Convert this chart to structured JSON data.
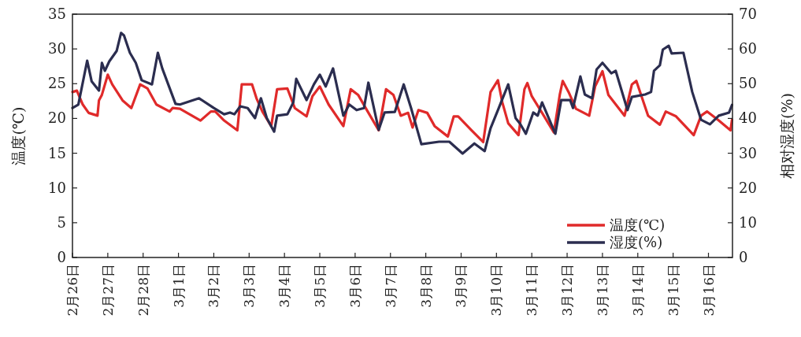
{
  "chart_data": {
    "type": "line",
    "ylabel": "温度(℃)",
    "y2label": "相对湿度(%)",
    "xlim": [
      "--02-26",
      "--03-16T16:19"
    ],
    "ylim": [
      0,
      35
    ],
    "y2lim": [
      0,
      70
    ],
    "xticks": [
      {
        "value": "--02-26",
        "label": "2月26日"
      },
      {
        "value": "--02-27",
        "label": "2月27日"
      },
      {
        "value": "--02-28",
        "label": "2月28日"
      },
      {
        "value": "--03-01",
        "label": "3月1日"
      },
      {
        "value": "--03-02",
        "label": "3月2日"
      },
      {
        "value": "--03-03",
        "label": "3月3日"
      },
      {
        "value": "--03-04",
        "label": "3月4日"
      },
      {
        "value": "--03-05",
        "label": "3月5日"
      },
      {
        "value": "--03-06",
        "label": "3月6日"
      },
      {
        "value": "--03-07",
        "label": "3月7日"
      },
      {
        "value": "--03-08",
        "label": "3月8日"
      },
      {
        "value": "--03-09",
        "label": "3月9日"
      },
      {
        "value": "--03-10",
        "label": "3月10日"
      },
      {
        "value": "--03-11",
        "label": "3月11日"
      },
      {
        "value": "--03-12",
        "label": "3月12日"
      },
      {
        "value": "--03-13",
        "label": "3月13日"
      },
      {
        "value": "--03-14",
        "label": "3月14日"
      },
      {
        "value": "--03-15",
        "label": "3月15日"
      },
      {
        "value": "--03-16",
        "label": "3月16日"
      }
    ],
    "yticks": [
      0,
      5,
      10,
      15,
      20,
      25,
      30,
      35
    ],
    "y2ticks": [
      0,
      10,
      20,
      30,
      40,
      50,
      60,
      70
    ],
    "grid": false,
    "legend": "bottom right",
    "line_style": "solid",
    "series": [
      {
        "name": "温度(℃)",
        "color": "#e02a2a",
        "x": [
          "--02-26T00:00",
          "--02-26T03:00",
          "--02-26T07:00",
          "--02-26T11:00",
          "--02-26T17:00",
          "--02-26T18:00",
          "--02-26T20:00",
          "--02-27T00:00",
          "--02-27T03:00",
          "--02-27T10:00",
          "--02-27T16:00",
          "--02-27T22:00",
          "--02-28T03:00",
          "--02-28T09:00",
          "--02-28T18:00",
          "--02-28T20:00",
          "--03-01T01:00",
          "--03-01T15:00",
          "--03-01T22:00",
          "--03-02T01:00",
          "--03-02T07:00",
          "--03-02T16:00",
          "--03-02T19:00",
          "--03-03T02:00",
          "--03-03T05:00",
          "--03-03T09:00",
          "--03-03T15:00",
          "--03-03T19:00",
          "--03-04T02:00",
          "--03-04T07:00",
          "--03-04T15:00",
          "--03-04T19:00",
          "--03-05T00:00",
          "--03-05T06:00",
          "--03-05T16:00",
          "--03-05T21:00",
          "--03-06T02:00",
          "--03-06T08:00",
          "--03-06T16:00",
          "--03-06T21:00",
          "--03-07T02:00",
          "--03-07T07:00",
          "--03-07T12:00",
          "--03-07T15:00",
          "--03-07T19:00",
          "--03-08T01:00",
          "--03-08T06:00",
          "--03-08T15:00",
          "--03-08T19:00",
          "--03-08T22:00",
          "--03-09T07:00",
          "--03-09T15:00",
          "--03-09T20:00",
          "--03-10T01:00",
          "--03-10T04:00",
          "--03-10T08:00",
          "--03-10T15:00",
          "--03-10T19:00",
          "--03-10T21:00",
          "--03-11T00:00",
          "--03-11T07:00",
          "--03-11T15:00",
          "--03-11T19:00",
          "--03-11T21:00",
          "--03-12T01:00",
          "--03-12T06:00",
          "--03-12T15:00",
          "--03-12T19:00",
          "--03-13T00:00",
          "--03-13T04:00",
          "--03-13T15:00",
          "--03-13T20:00",
          "--03-13T23:00",
          "--03-14T07:00",
          "--03-14T15:00",
          "--03-14T19:00",
          "--03-15T02:00",
          "--03-15T14:00",
          "--03-15T19:00",
          "--03-15T23:00",
          "--03-16T07:00",
          "--03-16T15:00",
          "--03-16T16:00"
        ],
        "values": [
          23.8,
          24.0,
          22.0,
          20.8,
          20.4,
          22.6,
          23.4,
          26.3,
          24.9,
          22.6,
          21.5,
          24.9,
          24.3,
          22.0,
          21.0,
          21.5,
          21.4,
          19.7,
          21.0,
          21.0,
          19.7,
          18.3,
          24.9,
          24.9,
          22.9,
          21.0,
          18.9,
          24.2,
          24.3,
          21.5,
          20.3,
          23.2,
          24.6,
          22.0,
          18.9,
          24.2,
          23.4,
          21.2,
          18.3,
          24.2,
          23.4,
          20.4,
          20.8,
          18.7,
          21.2,
          20.8,
          18.9,
          17.4,
          20.3,
          20.3,
          18.3,
          16.6,
          23.8,
          25.5,
          22.3,
          19.3,
          17.6,
          24.2,
          25.1,
          23.2,
          20.8,
          18.0,
          23.4,
          25.4,
          23.8,
          21.4,
          20.4,
          24.6,
          26.8,
          23.4,
          20.4,
          24.9,
          25.4,
          20.4,
          19.1,
          21.0,
          20.3,
          17.6,
          20.4,
          21.0,
          19.7,
          18.3,
          19.8
        ]
      },
      {
        "name": "湿度(%)",
        "color": "#2b2d4f",
        "axis": "y2",
        "x": [
          "--02-26T00:00",
          "--02-26T04:00",
          "--02-26T10:00",
          "--02-26T13:00",
          "--02-26T18:00",
          "--02-26T20:00",
          "--02-26T22:00",
          "--02-27T01:00",
          "--02-27T06:00",
          "--02-27T09:00",
          "--02-27T11:00",
          "--02-27T15:00",
          "--02-27T19:00",
          "--02-27T23:00",
          "--02-28T06:00",
          "--02-28T10:00",
          "--02-28T13:00",
          "--02-28T22:00",
          "--03-01T01:00",
          "--03-01T14:00",
          "--03-02T00:00",
          "--03-02T07:00",
          "--03-02T11:00",
          "--03-02T14:00",
          "--03-02T18:00",
          "--03-02T23:00",
          "--03-03T04:00",
          "--03-03T08:00",
          "--03-03T12:00",
          "--03-03T17:00",
          "--03-03T19:00",
          "--03-04T02:00",
          "--03-04T06:00",
          "--03-04T08:00",
          "--03-04T15:00",
          "--03-04T20:00",
          "--03-05T00:00",
          "--03-05T04:00",
          "--03-05T09:00",
          "--03-05T16:00",
          "--03-05T20:00",
          "--03-06T01:00",
          "--03-06T06:00",
          "--03-06T09:00",
          "--03-06T16:00",
          "--03-06T20:00",
          "--03-07T03:00",
          "--03-07T09:00",
          "--03-07T14:00",
          "--03-07T21:00",
          "--03-08T09:00",
          "--03-08T16:00",
          "--03-09T01:00",
          "--03-09T09:00",
          "--03-09T16:00",
          "--03-09T20:00",
          "--03-10T01:00",
          "--03-10T08:00",
          "--03-10T13:00",
          "--03-10T16:00",
          "--03-10T20:00",
          "--03-11T01:00",
          "--03-11T04:00",
          "--03-11T07:00",
          "--03-11T16:00",
          "--03-11T20:00",
          "--03-12T02:00",
          "--03-12T04:00",
          "--03-12T09:00",
          "--03-12T12:00",
          "--03-12T17:00",
          "--03-12T20:00",
          "--03-13T00:00",
          "--03-13T06:00",
          "--03-13T09:00",
          "--03-13T17:00",
          "--03-13T20:00",
          "--03-14T05:00",
          "--03-14T09:00",
          "--03-14T11:00",
          "--03-14T15:00",
          "--03-14T17:00",
          "--03-14T21:00",
          "--03-14T23:00",
          "--03-15T07:00",
          "--03-15T13:00",
          "--03-15T19:00",
          "--03-16T01:00",
          "--03-16T07:00",
          "--03-16T14:00",
          "--03-16T16:00"
        ],
        "values": [
          43.0,
          44.0,
          56.6,
          50.7,
          48.0,
          56.0,
          53.7,
          56.4,
          59.4,
          64.6,
          63.9,
          58.9,
          56.0,
          51.0,
          49.8,
          58.9,
          54.4,
          44.2,
          44.0,
          45.8,
          43.0,
          41.2,
          41.7,
          41.2,
          43.5,
          43.0,
          40.1,
          45.8,
          40.1,
          36.2,
          40.8,
          41.2,
          44.6,
          51.4,
          45.3,
          49.8,
          52.6,
          49.2,
          54.4,
          40.8,
          44.0,
          42.4,
          43.0,
          50.3,
          36.7,
          41.7,
          41.9,
          49.8,
          43.0,
          32.6,
          33.3,
          33.3,
          29.9,
          32.8,
          30.6,
          37.2,
          42.4,
          49.8,
          40.1,
          38.5,
          35.6,
          41.7,
          40.8,
          44.6,
          35.6,
          45.3,
          45.3,
          43.0,
          52.1,
          46.9,
          45.8,
          54.1,
          56.0,
          53.0,
          53.7,
          42.4,
          46.2,
          46.9,
          47.6,
          53.7,
          55.3,
          59.8,
          60.9,
          58.7,
          58.9,
          47.6,
          39.6,
          38.3,
          40.8,
          41.7,
          43.9
        ]
      }
    ]
  }
}
